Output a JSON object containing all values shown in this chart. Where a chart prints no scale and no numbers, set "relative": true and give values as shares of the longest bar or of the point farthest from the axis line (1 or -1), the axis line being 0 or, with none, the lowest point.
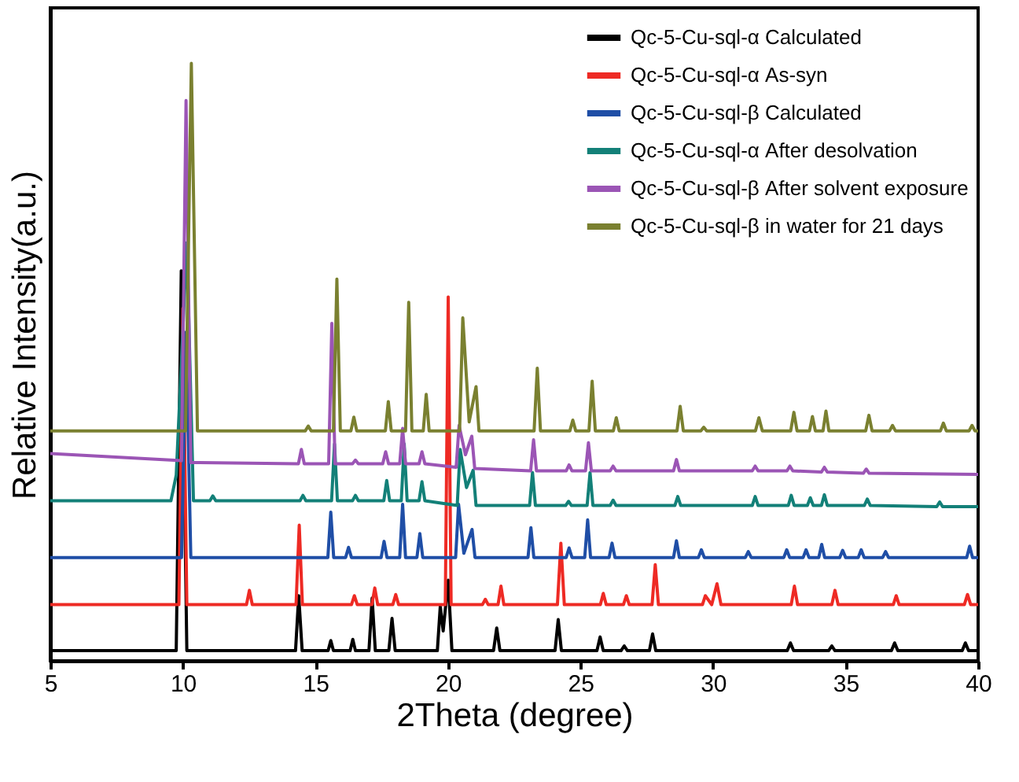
{
  "chart_data": {
    "type": "line",
    "relative": true,
    "xlabel": "2Theta (degree)",
    "ylabel": "Relative Intensity(a.u.)",
    "xlim": [
      5,
      40
    ],
    "xticks": [
      5,
      10,
      15,
      20,
      25,
      30,
      35,
      40
    ],
    "tick_labels": "x",
    "grid": false,
    "legend": "top right",
    "marker": "none",
    "line_style": "solid",
    "series": [
      {
        "name": "Qc-5-Cu-sql-α Calculated",
        "color": "#000000",
        "x": [
          5,
          9.75,
          9.94,
          10.15,
          14.25,
          14.37,
          14.5,
          15.48,
          15.58,
          15.68,
          16.31,
          16.41,
          16.51,
          17.02,
          17.14,
          17.26,
          17.77,
          17.89,
          18.01,
          19.6,
          19.71,
          19.82,
          20.01,
          20.15,
          21.72,
          21.84,
          21.96,
          24.04,
          24.16,
          24.28,
          25.62,
          25.74,
          25.86,
          26.53,
          26.65,
          26.77,
          27.6,
          27.72,
          27.84,
          32.8,
          32.92,
          33.04,
          34.36,
          34.48,
          34.6,
          36.73,
          36.85,
          36.97,
          39.4,
          39.52,
          39.64,
          40
        ],
        "values": [
          0.017,
          0.017,
          0.653,
          0.017,
          0.017,
          0.109,
          0.017,
          0.017,
          0.034,
          0.017,
          0.017,
          0.036,
          0.017,
          0.017,
          0.105,
          0.017,
          0.017,
          0.071,
          0.017,
          0.017,
          0.091,
          0.05,
          0.135,
          0.017,
          0.017,
          0.055,
          0.017,
          0.017,
          0.069,
          0.017,
          0.017,
          0.04,
          0.017,
          0.017,
          0.025,
          0.017,
          0.017,
          0.045,
          0.017,
          0.017,
          0.03,
          0.017,
          0.017,
          0.025,
          0.017,
          0.017,
          0.03,
          0.017,
          0.017,
          0.03,
          0.017,
          0.017
        ]
      },
      {
        "name": "Qc-5-Cu-sql-α As-syn",
        "color": "#ee2a24",
        "x": [
          5,
          9.85,
          10.0,
          10.15,
          12.4,
          12.51,
          12.62,
          14.27,
          14.39,
          14.51,
          16.36,
          16.47,
          16.58,
          17.13,
          17.24,
          17.35,
          17.92,
          18.03,
          18.14,
          19.9,
          20.01,
          20.12,
          21.3,
          21.41,
          21.52,
          21.89,
          22.0,
          22.11,
          24.13,
          24.26,
          24.39,
          25.75,
          25.86,
          25.97,
          26.62,
          26.73,
          26.84,
          27.7,
          27.82,
          27.94,
          29.6,
          29.71,
          29.95,
          30.15,
          30.3,
          32.95,
          33.07,
          33.19,
          34.48,
          34.6,
          34.72,
          36.8,
          36.91,
          37.02,
          39.48,
          39.6,
          39.72,
          40
        ],
        "values": [
          0.094,
          0.094,
          0.59,
          0.094,
          0.094,
          0.118,
          0.094,
          0.094,
          0.227,
          0.094,
          0.094,
          0.109,
          0.094,
          0.094,
          0.122,
          0.094,
          0.094,
          0.111,
          0.094,
          0.094,
          0.609,
          0.094,
          0.094,
          0.103,
          0.094,
          0.094,
          0.125,
          0.094,
          0.094,
          0.197,
          0.094,
          0.094,
          0.113,
          0.094,
          0.094,
          0.109,
          0.094,
          0.094,
          0.161,
          0.094,
          0.094,
          0.109,
          0.094,
          0.129,
          0.094,
          0.094,
          0.125,
          0.094,
          0.094,
          0.118,
          0.094,
          0.094,
          0.109,
          0.094,
          0.094,
          0.111,
          0.094,
          0.094
        ]
      },
      {
        "name": "Qc-5-Cu-sql-β Calculated",
        "color": "#1f4ea6",
        "x": [
          5,
          9.95,
          10.12,
          10.3,
          15.47,
          15.58,
          15.69,
          16.14,
          16.25,
          16.36,
          17.48,
          17.59,
          17.7,
          18.18,
          18.29,
          18.4,
          18.83,
          18.94,
          19.05,
          20.29,
          20.4,
          20.6,
          20.91,
          21.02,
          23.02,
          23.13,
          23.24,
          24.46,
          24.57,
          24.68,
          25.16,
          25.27,
          25.38,
          26.08,
          26.19,
          26.3,
          28.51,
          28.62,
          28.73,
          29.45,
          29.56,
          29.67,
          31.22,
          31.33,
          31.44,
          32.67,
          32.78,
          32.89,
          33.4,
          33.51,
          33.62,
          33.99,
          34.1,
          34.21,
          34.78,
          34.89,
          35.0,
          35.48,
          35.59,
          35.7,
          36.4,
          36.51,
          36.62,
          39.57,
          39.68,
          39.79,
          40
        ],
        "values": [
          0.173,
          0.173,
          0.55,
          0.173,
          0.173,
          0.249,
          0.173,
          0.173,
          0.19,
          0.173,
          0.173,
          0.2,
          0.173,
          0.173,
          0.262,
          0.173,
          0.173,
          0.213,
          0.173,
          0.173,
          0.262,
          0.18,
          0.22,
          0.173,
          0.173,
          0.223,
          0.173,
          0.173,
          0.189,
          0.173,
          0.173,
          0.236,
          0.173,
          0.173,
          0.197,
          0.173,
          0.173,
          0.201,
          0.173,
          0.173,
          0.186,
          0.173,
          0.173,
          0.183,
          0.173,
          0.173,
          0.186,
          0.173,
          0.173,
          0.186,
          0.173,
          0.173,
          0.195,
          0.173,
          0.173,
          0.185,
          0.173,
          0.173,
          0.186,
          0.173,
          0.173,
          0.183,
          0.173,
          0.173,
          0.192,
          0.173,
          0.173
        ]
      },
      {
        "name": "Qc-5-Cu-sql-α After desolvation",
        "color": "#138078",
        "x": [
          5,
          9.55,
          9.75,
          10.15,
          10.4,
          11.02,
          11.13,
          11.24,
          14.42,
          14.53,
          14.64,
          15.61,
          15.72,
          15.83,
          16.4,
          16.51,
          16.62,
          17.58,
          17.69,
          17.8,
          18.24,
          18.35,
          18.46,
          18.91,
          19.02,
          19.13,
          20.35,
          20.46,
          20.7,
          20.95,
          21.06,
          23.08,
          23.19,
          23.3,
          24.44,
          24.55,
          24.66,
          25.25,
          25.36,
          25.47,
          26.12,
          26.23,
          26.34,
          28.56,
          28.67,
          28.78,
          31.48,
          31.59,
          31.7,
          32.84,
          32.95,
          33.06,
          33.56,
          33.67,
          33.78,
          34.09,
          34.2,
          34.31,
          35.71,
          35.82,
          35.93,
          38.44,
          38.55,
          38.66,
          40
        ],
        "values": [
          0.268,
          0.268,
          0.311,
          0.7,
          0.268,
          0.268,
          0.276,
          0.268,
          0.268,
          0.277,
          0.268,
          0.268,
          0.363,
          0.268,
          0.268,
          0.277,
          0.268,
          0.268,
          0.302,
          0.268,
          0.268,
          0.363,
          0.268,
          0.268,
          0.3,
          0.268,
          0.26,
          0.354,
          0.29,
          0.319,
          0.26,
          0.26,
          0.315,
          0.26,
          0.26,
          0.267,
          0.26,
          0.26,
          0.315,
          0.26,
          0.26,
          0.269,
          0.26,
          0.26,
          0.275,
          0.26,
          0.26,
          0.275,
          0.26,
          0.26,
          0.277,
          0.26,
          0.26,
          0.273,
          0.26,
          0.26,
          0.278,
          0.26,
          0.26,
          0.271,
          0.26,
          0.258,
          0.266,
          0.258,
          0.258
        ]
      },
      {
        "name": "Qc-5-Cu-sql-β After solvent exposure",
        "color": "#9b55b5",
        "x": [
          5,
          9.95,
          10.12,
          10.3,
          14.36,
          14.47,
          14.58,
          15.5,
          15.62,
          15.74,
          16.4,
          16.51,
          16.62,
          17.54,
          17.65,
          17.76,
          18.18,
          18.29,
          18.4,
          18.91,
          19.02,
          19.13,
          20.31,
          20.42,
          20.66,
          20.9,
          21.01,
          23.12,
          23.23,
          23.34,
          24.46,
          24.57,
          24.68,
          25.19,
          25.3,
          25.41,
          26.12,
          26.23,
          26.34,
          28.51,
          28.62,
          28.73,
          31.48,
          31.59,
          31.7,
          32.79,
          32.9,
          33.01,
          34.09,
          34.2,
          34.31,
          35.67,
          35.78,
          35.89,
          40
        ],
        "values": [
          0.347,
          0.335,
          0.938,
          0.332,
          0.33,
          0.354,
          0.33,
          0.33,
          0.565,
          0.33,
          0.33,
          0.336,
          0.33,
          0.33,
          0.35,
          0.33,
          0.33,
          0.389,
          0.33,
          0.33,
          0.35,
          0.33,
          0.324,
          0.394,
          0.345,
          0.376,
          0.322,
          0.318,
          0.37,
          0.318,
          0.318,
          0.328,
          0.318,
          0.318,
          0.365,
          0.318,
          0.318,
          0.326,
          0.318,
          0.318,
          0.337,
          0.318,
          0.318,
          0.326,
          0.318,
          0.318,
          0.326,
          0.318,
          0.316,
          0.324,
          0.316,
          0.314,
          0.321,
          0.314,
          0.312
        ]
      },
      {
        "name": "Qc-5-Cu-sql-β in water for 21 days",
        "color": "#7a8030",
        "x": [
          5,
          10.1,
          10.32,
          10.55,
          14.62,
          14.73,
          14.84,
          15.68,
          15.81,
          15.94,
          16.34,
          16.45,
          16.56,
          17.64,
          17.75,
          17.86,
          18.4,
          18.52,
          18.64,
          19.07,
          19.18,
          19.29,
          20.44,
          20.56,
          20.8,
          21.06,
          21.17,
          23.25,
          23.37,
          23.49,
          24.6,
          24.71,
          24.82,
          25.32,
          25.44,
          25.56,
          26.24,
          26.35,
          26.46,
          28.64,
          28.76,
          28.88,
          29.54,
          29.65,
          29.76,
          31.6,
          31.73,
          31.86,
          32.93,
          33.05,
          33.17,
          33.64,
          33.75,
          33.86,
          34.15,
          34.26,
          34.37,
          35.76,
          35.88,
          36.0,
          36.66,
          36.77,
          36.88,
          38.58,
          38.69,
          38.8,
          39.66,
          39.77,
          39.88,
          40
        ],
        "values": [
          0.385,
          0.385,
          1,
          0.385,
          0.385,
          0.393,
          0.385,
          0.385,
          0.639,
          0.385,
          0.385,
          0.408,
          0.385,
          0.385,
          0.434,
          0.385,
          0.385,
          0.6,
          0.385,
          0.385,
          0.446,
          0.385,
          0.385,
          0.574,
          0.4,
          0.459,
          0.385,
          0.385,
          0.49,
          0.385,
          0.385,
          0.403,
          0.385,
          0.385,
          0.468,
          0.385,
          0.385,
          0.407,
          0.385,
          0.385,
          0.426,
          0.385,
          0.385,
          0.391,
          0.385,
          0.385,
          0.407,
          0.385,
          0.385,
          0.416,
          0.385,
          0.385,
          0.409,
          0.385,
          0.385,
          0.418,
          0.385,
          0.385,
          0.411,
          0.385,
          0.385,
          0.394,
          0.385,
          0.385,
          0.398,
          0.385,
          0.385,
          0.394,
          0.385,
          0.385
        ]
      }
    ]
  }
}
